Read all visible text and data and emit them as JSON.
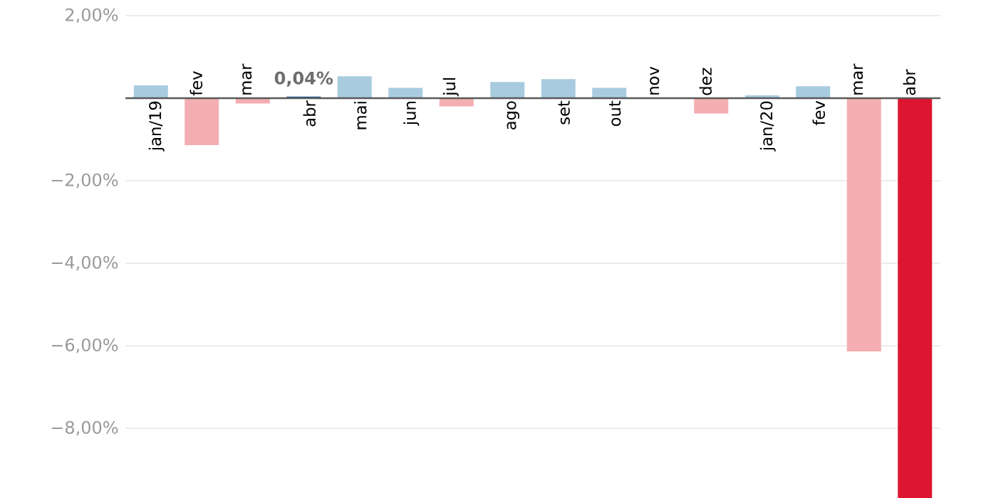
{
  "chart_data": {
    "type": "bar",
    "categories": [
      "jan/19",
      "fev",
      "mar",
      "abr",
      "mai",
      "jun",
      "jul",
      "ago",
      "set",
      "out",
      "nov",
      "dez",
      "jan/20",
      "fev",
      "mar",
      "abr"
    ],
    "values": [
      0.31,
      -1.14,
      -0.13,
      0.04,
      0.53,
      0.25,
      -0.2,
      0.39,
      0.46,
      0.25,
      0,
      -0.37,
      0.07,
      0.29,
      -6.14,
      -9.69
    ],
    "colors": [
      "#a8cbdf",
      "#f4aeb1",
      "#f4aeb1",
      "#1f5f99",
      "#a8cbdf",
      "#a8cbdf",
      "#f4aeb1",
      "#a8cbdf",
      "#a8cbdf",
      "#a8cbdf",
      "#a8cbdf",
      "#f4aeb1",
      "#a8cbdf",
      "#a8cbdf",
      "#f4aeb1",
      "#dd1530"
    ],
    "value_labels": [
      null,
      null,
      null,
      "0,04%",
      null,
      null,
      null,
      null,
      null,
      null,
      null,
      null,
      null,
      null,
      null,
      null
    ],
    "ylim": [
      -9.69,
      2
    ],
    "yticks": [
      {
        "value": 2,
        "label": "2,00%"
      },
      {
        "value": 0,
        "label": null
      },
      {
        "value": -2,
        "label": "−2,00%"
      },
      {
        "value": -4,
        "label": "−4,00%"
      },
      {
        "value": -6,
        "label": "−6,00%"
      },
      {
        "value": -8,
        "label": "−8,00%"
      }
    ],
    "grid": "y"
  }
}
